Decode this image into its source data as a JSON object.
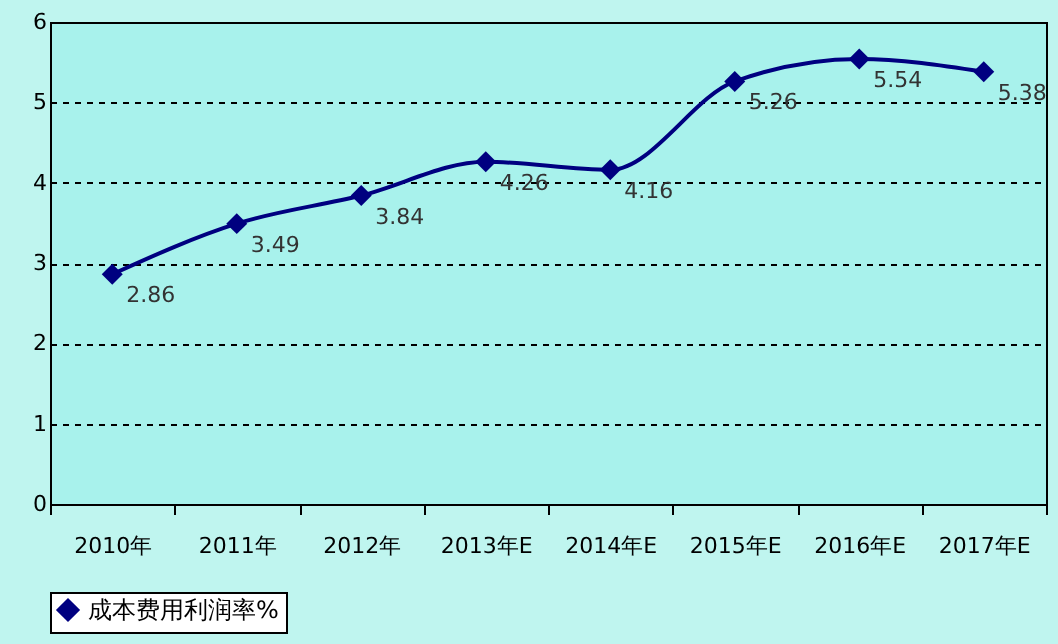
{
  "chart_data": {
    "type": "line",
    "categories": [
      "2010年",
      "2011年",
      "2012年",
      "2013年E",
      "2014年E",
      "2015年E",
      "2016年E",
      "2017年E"
    ],
    "series": [
      {
        "name": "成本费用利润率%",
        "color": "#000080",
        "values": [
          2.86,
          3.49,
          3.84,
          4.26,
          4.16,
          5.26,
          5.54,
          5.38
        ]
      }
    ],
    "ylim": [
      0,
      6
    ],
    "yticks": [
      0,
      1,
      2,
      3,
      4,
      5,
      6
    ],
    "grid": "y",
    "legend": "bottom",
    "marker": "diamond",
    "line_style": "solid",
    "data_labels": true
  }
}
